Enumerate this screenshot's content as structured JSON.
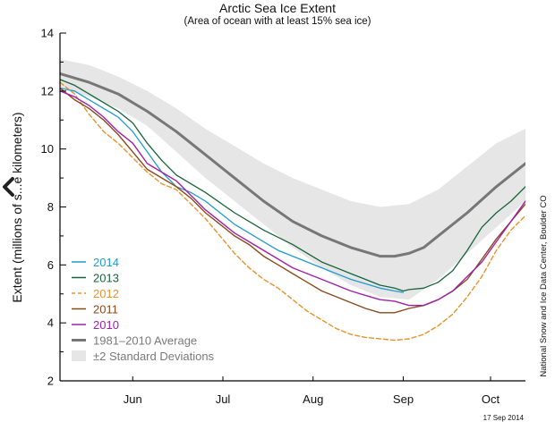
{
  "chart_data": {
    "type": "line",
    "title": "Arctic Sea Ice Extent",
    "subtitle": "(Area of ocean with at least 15% sea ice)",
    "ylabel": "Extent (millions of s...e kilometers)",
    "xlabel": "",
    "ylim": [
      2,
      14
    ],
    "xlim": [
      0,
      160
    ],
    "yticks": [
      2,
      4,
      6,
      8,
      10,
      12,
      14
    ],
    "x_unit": "days since 21 May",
    "xtick_positions": [
      25,
      56,
      87,
      118,
      148
    ],
    "xtick_labels": [
      "Jun",
      "Jul",
      "Aug",
      "Sep",
      "Oct"
    ],
    "band": {
      "name": "±2 Standard Deviations",
      "color": "#e6e6e6",
      "x": [
        0,
        10,
        20,
        30,
        40,
        50,
        60,
        70,
        80,
        90,
        100,
        110,
        120,
        130,
        140,
        150,
        160
      ],
      "upper": [
        13.1,
        12.9,
        12.5,
        12.0,
        11.4,
        10.7,
        10.1,
        9.5,
        9.0,
        8.6,
        8.2,
        8.0,
        8.1,
        8.6,
        9.4,
        10.2,
        10.7
      ],
      "lower": [
        12.1,
        11.8,
        11.4,
        10.8,
        9.9,
        9.0,
        8.2,
        7.4,
        6.6,
        5.9,
        5.3,
        4.9,
        4.8,
        5.5,
        6.4,
        7.3,
        8.2
      ]
    },
    "series": [
      {
        "name": "1981–2010 Average",
        "color": "#777777",
        "width": 3,
        "x": [
          0,
          10,
          20,
          30,
          40,
          50,
          60,
          70,
          80,
          90,
          100,
          110,
          115,
          120,
          125,
          130,
          140,
          150,
          160
        ],
        "values": [
          12.6,
          12.3,
          11.9,
          11.3,
          10.6,
          9.8,
          9.0,
          8.2,
          7.5,
          7.0,
          6.6,
          6.3,
          6.3,
          6.4,
          6.6,
          7.0,
          7.8,
          8.7,
          9.5
        ]
      },
      {
        "name": "2014",
        "color": "#1f9bd1",
        "width": 1.3,
        "x": [
          0,
          5,
          10,
          15,
          20,
          25,
          30,
          35,
          40,
          45,
          50,
          55,
          60,
          65,
          70,
          75,
          80,
          85,
          90,
          95,
          100,
          105,
          110,
          115,
          118
        ],
        "values": [
          12.1,
          12.0,
          11.7,
          11.4,
          11.1,
          10.6,
          9.9,
          9.2,
          8.7,
          8.5,
          8.2,
          7.8,
          7.4,
          7.1,
          6.8,
          6.5,
          6.3,
          6.1,
          5.9,
          5.7,
          5.5,
          5.35,
          5.2,
          5.1,
          5.05
        ]
      },
      {
        "name": "2013",
        "color": "#16643a",
        "width": 1.3,
        "x": [
          0,
          5,
          10,
          15,
          20,
          25,
          30,
          35,
          40,
          50,
          60,
          70,
          80,
          90,
          100,
          105,
          110,
          115,
          118,
          120,
          125,
          130,
          135,
          140,
          145,
          150,
          155,
          160
        ],
        "values": [
          12.4,
          12.2,
          11.9,
          11.6,
          11.3,
          10.9,
          10.2,
          9.6,
          9.1,
          8.5,
          7.8,
          7.2,
          6.7,
          6.1,
          5.7,
          5.5,
          5.3,
          5.2,
          5.1,
          5.15,
          5.2,
          5.4,
          5.8,
          6.5,
          7.3,
          7.8,
          8.2,
          8.7
        ]
      },
      {
        "name": "2012",
        "color": "#e8922b",
        "width": 1.4,
        "dash": "5,3",
        "x": [
          0,
          5,
          10,
          15,
          20,
          25,
          30,
          35,
          40,
          45,
          50,
          55,
          60,
          65,
          70,
          75,
          80,
          85,
          90,
          95,
          100,
          105,
          110,
          115,
          120,
          125,
          130,
          135,
          140,
          145,
          150,
          155,
          160
        ],
        "values": [
          12.3,
          11.9,
          11.2,
          10.6,
          10.2,
          9.7,
          9.2,
          8.8,
          8.6,
          8.1,
          7.6,
          7.0,
          6.4,
          5.9,
          5.5,
          5.2,
          4.8,
          4.4,
          4.1,
          3.8,
          3.6,
          3.5,
          3.45,
          3.4,
          3.45,
          3.6,
          3.9,
          4.3,
          4.9,
          5.6,
          6.5,
          7.2,
          7.7
        ]
      },
      {
        "name": "2011",
        "color": "#8b4a1c",
        "width": 1.4,
        "x": [
          0,
          5,
          10,
          15,
          20,
          25,
          30,
          35,
          40,
          45,
          50,
          55,
          60,
          65,
          70,
          75,
          80,
          85,
          90,
          95,
          100,
          105,
          110,
          115,
          120,
          125,
          130,
          135,
          140,
          145,
          150,
          155,
          160
        ],
        "values": [
          12.1,
          11.7,
          11.4,
          11.0,
          10.5,
          9.9,
          9.3,
          9.0,
          8.7,
          8.3,
          7.8,
          7.4,
          7.0,
          6.7,
          6.3,
          6.0,
          5.7,
          5.4,
          5.1,
          4.9,
          4.7,
          4.5,
          4.35,
          4.35,
          4.5,
          4.6,
          4.8,
          5.1,
          5.5,
          6.2,
          6.9,
          7.5,
          8.1
        ]
      },
      {
        "name": "2010",
        "color": "#a020a8",
        "width": 1.4,
        "x": [
          0,
          5,
          10,
          15,
          20,
          25,
          30,
          35,
          40,
          45,
          50,
          55,
          60,
          65,
          70,
          75,
          80,
          85,
          90,
          95,
          100,
          105,
          110,
          115,
          120,
          125,
          130,
          135,
          140,
          145,
          150,
          155,
          160
        ],
        "values": [
          12.0,
          11.8,
          11.5,
          11.1,
          10.6,
          10.2,
          9.5,
          9.2,
          8.9,
          8.4,
          7.9,
          7.5,
          7.1,
          6.8,
          6.5,
          6.2,
          5.9,
          5.7,
          5.5,
          5.3,
          5.1,
          4.95,
          4.8,
          4.75,
          4.6,
          4.6,
          4.8,
          5.1,
          5.6,
          6.1,
          6.8,
          7.5,
          8.2
        ]
      }
    ],
    "legend": [
      {
        "label": "2014",
        "color": "#1f9bd1",
        "style": "solid"
      },
      {
        "label": "2013",
        "color": "#16643a",
        "style": "solid"
      },
      {
        "label": "2012",
        "color": "#e8922b",
        "style": "dashed"
      },
      {
        "label": "2011",
        "color": "#8b4a1c",
        "style": "solid"
      },
      {
        "label": "2010",
        "color": "#a020a8",
        "style": "solid"
      },
      {
        "label": "1981–2010 Average",
        "color": "#777777",
        "style": "thick",
        "text_color": "#7a7a7a"
      },
      {
        "label": "±2 Standard Deviations",
        "color": "#e6e6e6",
        "style": "box",
        "text_color": "#7a7a7a"
      }
    ],
    "legend_position": "bottom-left",
    "credit": "National Snow and Ice Data Center, Boulder CO",
    "date": "17 Sep 2014"
  }
}
